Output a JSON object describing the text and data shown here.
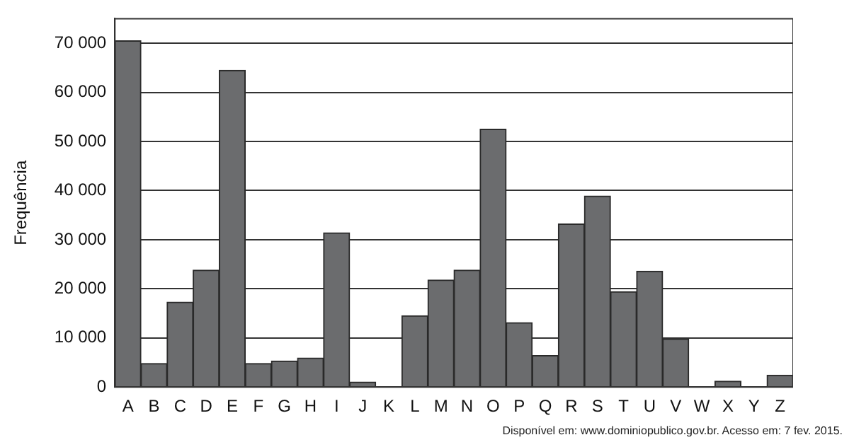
{
  "chart_data": {
    "type": "bar",
    "ylabel": "Frequência",
    "categories": [
      "A",
      "B",
      "C",
      "D",
      "E",
      "F",
      "G",
      "H",
      "I",
      "J",
      "K",
      "L",
      "M",
      "N",
      "O",
      "P",
      "Q",
      "R",
      "S",
      "T",
      "U",
      "V",
      "W",
      "X",
      "Y",
      "Z"
    ],
    "values": [
      70500,
      4800,
      17300,
      23800,
      64500,
      4800,
      5300,
      5900,
      31400,
      1000,
      0,
      14500,
      21800,
      23800,
      52500,
      13100,
      6400,
      33200,
      38900,
      19400,
      23600,
      9800,
      0,
      1200,
      0,
      2400
    ],
    "color": "#6b6c6e",
    "ylim": [
      0,
      75000
    ],
    "yticks": [
      {
        "value": 0,
        "label": "0"
      },
      {
        "value": 10000,
        "label": "10 000"
      },
      {
        "value": 20000,
        "label": "20 000"
      },
      {
        "value": 30000,
        "label": "30 000"
      },
      {
        "value": 40000,
        "label": "40 000"
      },
      {
        "value": 50000,
        "label": "50 000"
      },
      {
        "value": 60000,
        "label": "60 000"
      },
      {
        "value": 70000,
        "label": "70 000"
      }
    ],
    "grid": "y",
    "legend": false,
    "annotations": [
      "Disponível em: www.dominiopublico.gov.br. Acesso em: 7 fev. 2015."
    ]
  }
}
